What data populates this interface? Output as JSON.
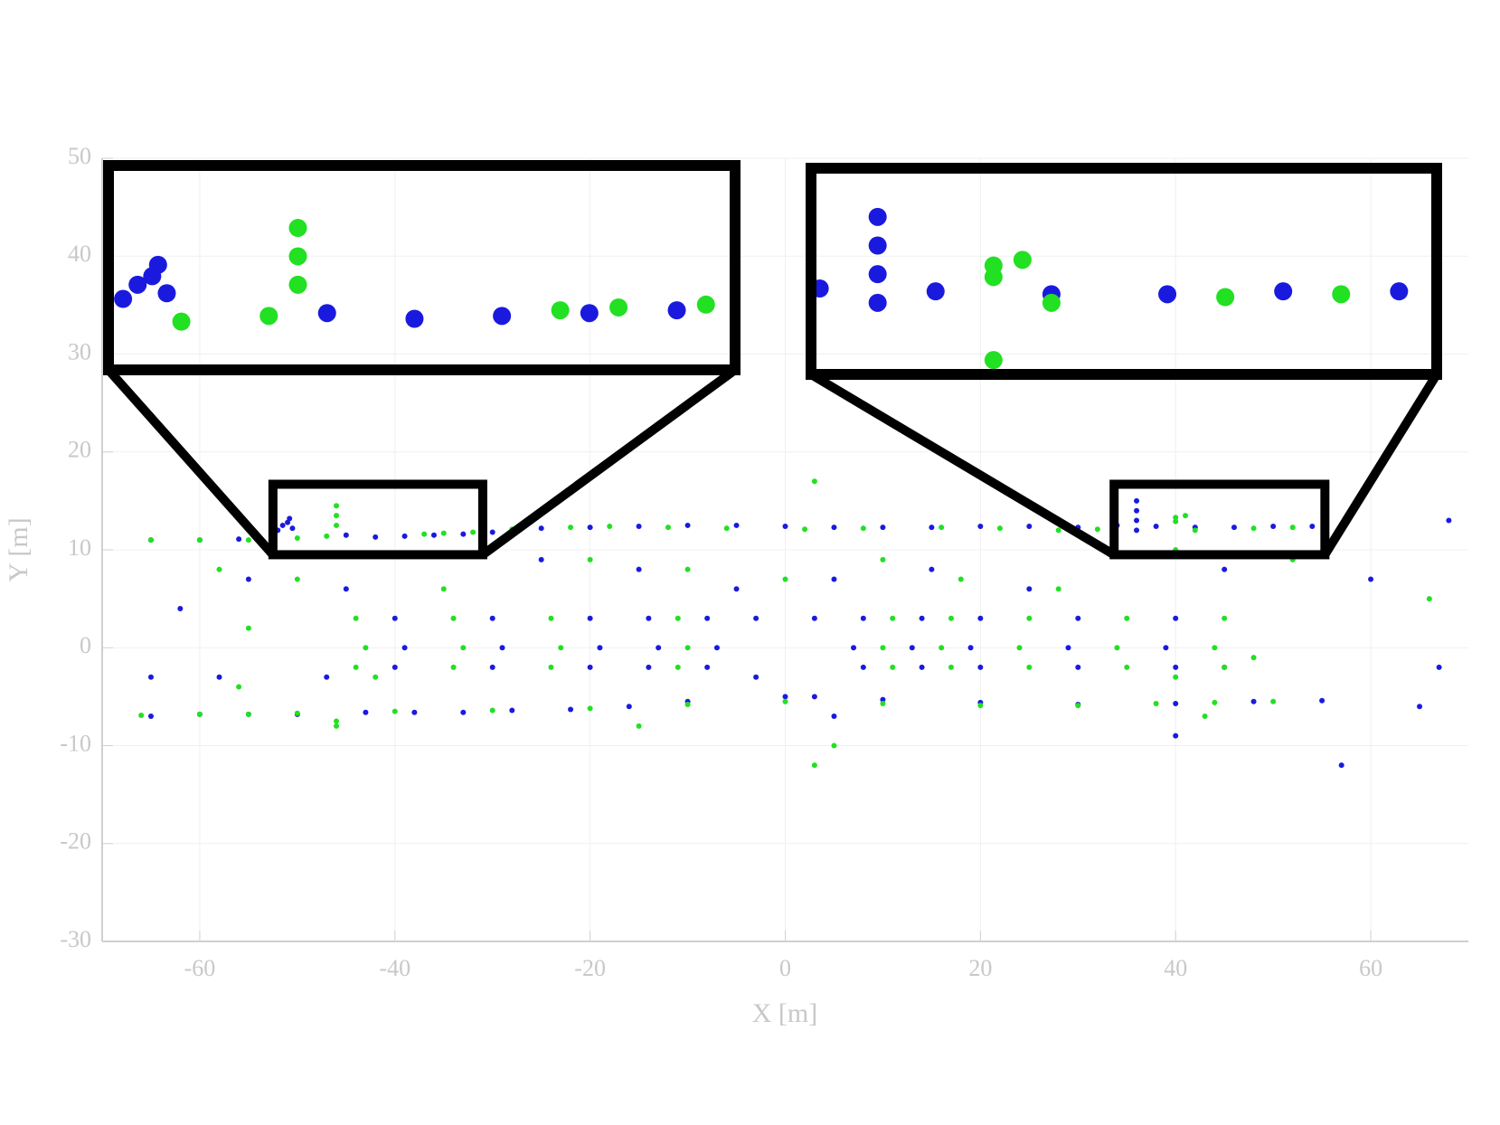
{
  "chart_data": {
    "type": "scatter",
    "x_label": "X [m]",
    "y_label": "Y [m]",
    "xlim": [
      -70,
      70
    ],
    "xticks": [
      -60,
      -40,
      -20,
      0,
      20,
      40,
      60
    ],
    "ylim": [
      -30,
      50
    ],
    "yticks": [
      -30,
      -20,
      -10,
      0,
      10,
      20,
      30,
      40,
      50
    ],
    "grid": true,
    "series": [
      {
        "color": "#1a1adf",
        "x": [
          -45,
          -42,
          -39,
          -36,
          -33,
          -30,
          -25,
          -20,
          -15,
          -10,
          -5,
          0,
          5,
          10,
          15,
          20,
          25,
          30,
          34,
          38,
          42,
          46,
          50,
          54,
          36,
          36,
          36,
          36,
          -51.5,
          -51,
          -50.5,
          -52,
          -50.8,
          -65,
          -60,
          -56,
          -65,
          -60,
          -55,
          -50,
          -43,
          -38,
          -33,
          -28,
          -22,
          -16,
          -10,
          0,
          10,
          20,
          30,
          40,
          48,
          55,
          -40,
          -39,
          -40,
          -30,
          -29,
          -30,
          -20,
          -19,
          -20,
          -14,
          -13,
          -14,
          -8,
          -7,
          -8,
          8,
          7,
          8,
          14,
          13,
          14,
          20,
          19,
          20,
          30,
          29,
          30,
          40,
          39,
          40,
          -62,
          -55,
          -45,
          -25,
          -15,
          -5,
          5,
          15,
          25,
          45,
          60,
          68,
          67,
          -65,
          -58,
          -47,
          40,
          57,
          5,
          3,
          -3,
          3,
          -3,
          45,
          65
        ],
        "y": [
          11.5,
          11.3,
          11.4,
          11.5,
          11.6,
          11.8,
          12.2,
          12.3,
          12.4,
          12.5,
          12.5,
          12.4,
          12.3,
          12.3,
          12.3,
          12.4,
          12.4,
          12.3,
          12.5,
          12.4,
          12.3,
          12.3,
          12.4,
          12.4,
          15,
          14,
          13,
          12,
          12.5,
          12.8,
          12.2,
          12,
          13.2,
          11,
          11,
          11.1,
          -7,
          -6.8,
          -6.8,
          -6.8,
          -6.6,
          -6.6,
          -6.6,
          -6.4,
          -6.3,
          -6,
          -5.5,
          -5,
          -5.3,
          -5.6,
          -5.8,
          -5.7,
          -5.5,
          -5.4,
          3,
          0,
          -2,
          3,
          0,
          -2,
          3,
          0,
          -2,
          3,
          0,
          -2,
          3,
          0,
          -2,
          3,
          0,
          -2,
          3,
          0,
          -2,
          3,
          0,
          -2,
          3,
          0,
          -2,
          3,
          0,
          -2,
          4,
          7,
          6,
          9,
          8,
          6,
          7,
          8,
          6,
          8,
          7,
          13,
          -2,
          -3,
          -3,
          -3,
          -9,
          -12,
          -7,
          -5,
          -3,
          3,
          3,
          -2,
          -6
        ]
      },
      {
        "color": "#22e022",
        "x": [
          -65,
          -60,
          -55,
          -50,
          -47,
          -46,
          -46,
          -46,
          -37,
          -35,
          -32,
          -28,
          -22,
          -18,
          -12,
          -6,
          2,
          8,
          16,
          22,
          28,
          32,
          40,
          40,
          41,
          42,
          48,
          52,
          -66,
          -60,
          -55,
          -50,
          -46,
          -46,
          -40,
          -30,
          -20,
          -10,
          0,
          10,
          20,
          30,
          38,
          44,
          50,
          -44,
          -43,
          -44,
          -34,
          -33,
          -34,
          -24,
          -23,
          -24,
          -11,
          -10,
          -11,
          11,
          10,
          11,
          17,
          16,
          17,
          25,
          24,
          25,
          35,
          34,
          35,
          45,
          44,
          45,
          -58,
          -50,
          -35,
          -20,
          -10,
          0,
          3,
          10,
          18,
          28,
          40,
          52,
          66,
          -56,
          -42,
          -15,
          3,
          5,
          40,
          -55,
          43,
          48
        ],
        "y": [
          11,
          11,
          11,
          11.2,
          11.4,
          12.5,
          13.5,
          14.5,
          11.6,
          11.7,
          11.8,
          12.1,
          12.3,
          12.4,
          12.3,
          12.2,
          12.1,
          12.2,
          12.3,
          12.2,
          12,
          12.1,
          13.3,
          12.9,
          13.5,
          12,
          12.2,
          12.3,
          -6.9,
          -6.8,
          -6.8,
          -6.7,
          -7.5,
          -8,
          -6.5,
          -6.4,
          -6.2,
          -5.8,
          -5.5,
          -5.7,
          -5.9,
          -5.9,
          -5.7,
          -5.6,
          -5.5,
          3,
          0,
          -2,
          3,
          0,
          -2,
          3,
          0,
          -2,
          3,
          0,
          -2,
          3,
          0,
          -2,
          3,
          0,
          -2,
          3,
          0,
          -2,
          3,
          0,
          -2,
          3,
          0,
          -2,
          8,
          7,
          6,
          9,
          8,
          7,
          17,
          9,
          7,
          6,
          10,
          9,
          5,
          -4,
          -3,
          -8,
          -12,
          -10,
          -3,
          2,
          -7,
          -1
        ]
      }
    ]
  }
}
